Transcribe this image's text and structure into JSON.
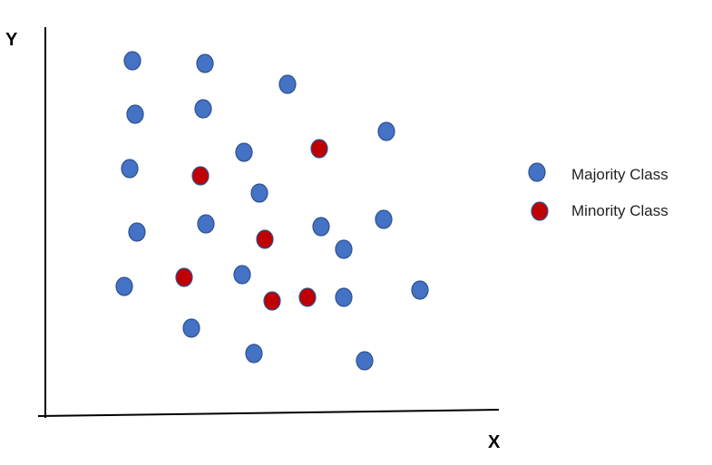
{
  "axes": {
    "y_label": "Y",
    "x_label": "X"
  },
  "legend": {
    "items": [
      {
        "label": "Majority Class"
      },
      {
        "label": "Minority Class"
      }
    ]
  }
}
